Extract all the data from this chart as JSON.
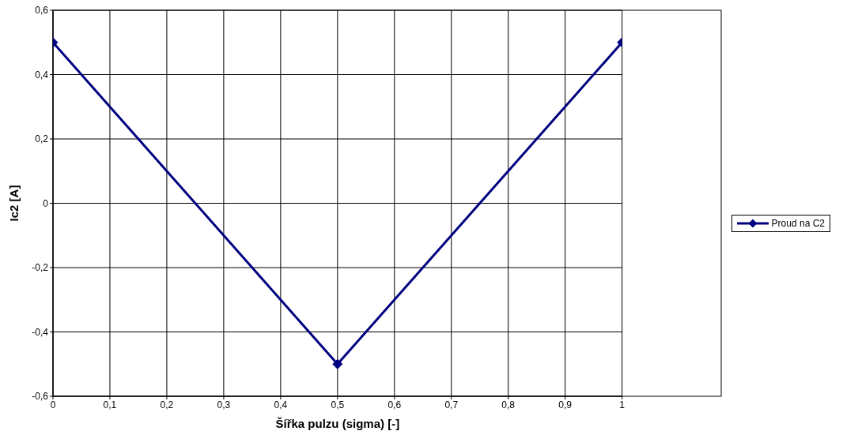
{
  "chart_data": {
    "type": "line",
    "xlabel": "Šířka pulzu (sigma) [-]",
    "ylabel": "Ic2 [A]",
    "x": [
      0,
      0.5,
      1
    ],
    "series": [
      {
        "name": "Proud na C2",
        "color": "#000080",
        "values": [
          0.5,
          -0.5,
          0.5
        ]
      }
    ],
    "xlim": [
      0,
      1
    ],
    "xticks": [
      {
        "value": 0,
        "label": "0"
      },
      {
        "value": 0.1,
        "label": "0,1"
      },
      {
        "value": 0.2,
        "label": "0,2"
      },
      {
        "value": 0.3,
        "label": "0,3"
      },
      {
        "value": 0.4,
        "label": "0,4"
      },
      {
        "value": 0.5,
        "label": "0,5"
      },
      {
        "value": 0.6,
        "label": "0,6"
      },
      {
        "value": 0.7,
        "label": "0,7"
      },
      {
        "value": 0.8,
        "label": "0,8"
      },
      {
        "value": 0.9,
        "label": "0,9"
      },
      {
        "value": 1,
        "label": "1"
      }
    ],
    "ylim": [
      -0.6,
      0.6
    ],
    "yticks": [
      {
        "value": -0.6,
        "label": "-0,6"
      },
      {
        "value": -0.4,
        "label": "-0,4"
      },
      {
        "value": -0.2,
        "label": "-0,2"
      },
      {
        "value": 0,
        "label": "0"
      },
      {
        "value": 0.2,
        "label": "0,2"
      },
      {
        "value": 0.4,
        "label": "0,4"
      },
      {
        "value": 0.6,
        "label": "0,6"
      }
    ],
    "grid": true,
    "legend": "right",
    "marker": "diamond",
    "line_style": "solid"
  }
}
